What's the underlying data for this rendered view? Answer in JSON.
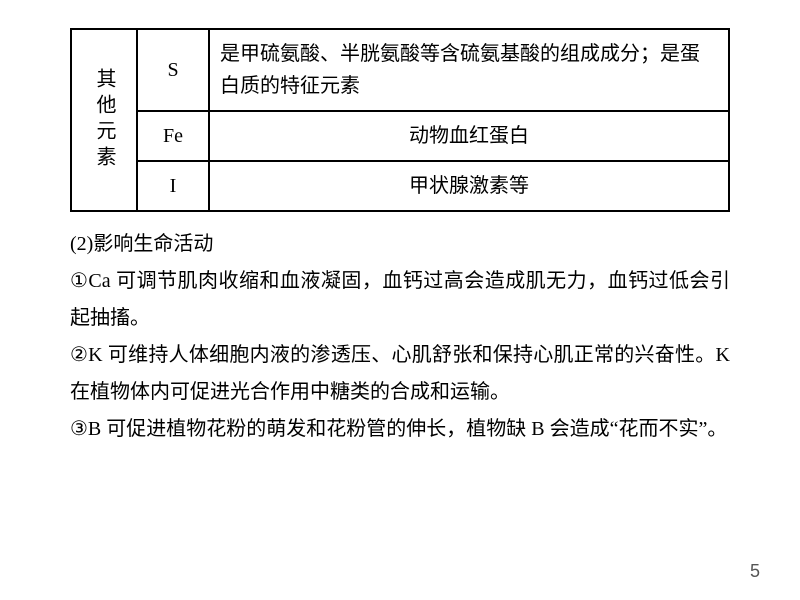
{
  "table": {
    "rowHeader": "其他元素",
    "rows": [
      {
        "element": "S",
        "desc": "是甲硫氨酸、半胱氨酸等含硫氨基酸的组成成分；是蛋白质的特征元素",
        "align": "left"
      },
      {
        "element": "Fe",
        "desc": "动物血红蛋白",
        "align": "center"
      },
      {
        "element": "I",
        "desc": "甲状腺激素等",
        "align": "center"
      }
    ],
    "border_color": "#000000",
    "font_size": 20
  },
  "body": {
    "heading": "(2)影响生命活动",
    "items": [
      "①Ca 可调节肌肉收缩和血液凝固，血钙过高会造成肌无力，血钙过低会引起抽搐。",
      "②K 可维持人体细胞内液的渗透压、心肌舒张和保持心肌正常的兴奋性。K 在植物体内可促进光合作用中糖类的合成和运输。",
      "③B 可促进植物花粉的萌发和花粉管的伸长，植物缺 B 会造成“花而不实”。"
    ],
    "font_size": 20,
    "line_height": 1.85
  },
  "page_number": "5",
  "colors": {
    "background": "#ffffff",
    "text": "#000000",
    "page_num": "#555555"
  }
}
